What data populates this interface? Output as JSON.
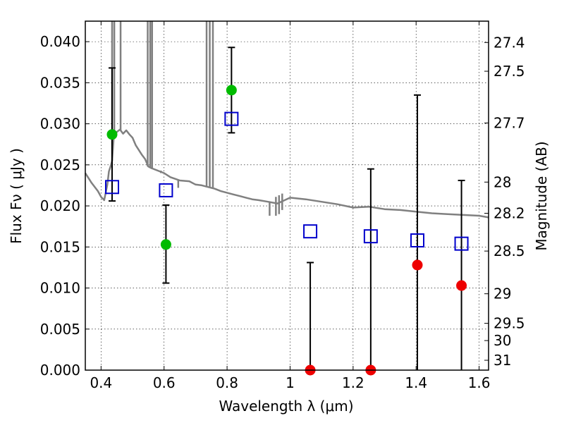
{
  "chart_data": {
    "type": "scatter",
    "xlabel": "Wavelength  λ (μm)",
    "ylabel": "Flux  Fν  ( μJy )",
    "ylabel_right": "Magnitude (AB)",
    "xlim": [
      0.35,
      1.63
    ],
    "ylim": [
      0.0,
      0.0425
    ],
    "grid": true,
    "x_ticks": [
      0.4,
      0.6,
      0.8,
      1.0,
      1.2,
      1.4,
      1.6
    ],
    "x_tick_labels": [
      "0.4",
      "0.6",
      "0.8",
      "1",
      "1.2",
      "1.4",
      "1.6"
    ],
    "y_ticks": [
      0.0,
      0.005,
      0.01,
      0.015,
      0.02,
      0.025,
      0.03,
      0.035,
      0.04
    ],
    "y_tick_labels": [
      "0.000",
      "0.005",
      "0.010",
      "0.015",
      "0.020",
      "0.025",
      "0.030",
      "0.035",
      "0.040"
    ],
    "right_ticks": [
      {
        "label": "27.4",
        "flux": 0.0399
      },
      {
        "label": "27.5",
        "flux": 0.0364
      },
      {
        "label": "27.7",
        "flux": 0.0301
      },
      {
        "label": "28",
        "flux": 0.0229
      },
      {
        "label": "28.2",
        "flux": 0.0191
      },
      {
        "label": "28.5",
        "flux": 0.0145
      },
      {
        "label": "29",
        "flux": 0.0093
      },
      {
        "label": "29.5",
        "flux": 0.0057
      },
      {
        "label": "30",
        "flux": 0.0036
      },
      {
        "label": "31",
        "flux": 0.0012
      }
    ],
    "observed": [
      {
        "x": 0.435,
        "y": 0.0287,
        "err_low": 0.0206,
        "err_high": 0.0368,
        "color": "#00bb00"
      },
      {
        "x": 0.606,
        "y": 0.0153,
        "err_low": 0.0106,
        "err_high": 0.0201,
        "color": "#00bb00"
      },
      {
        "x": 0.814,
        "y": 0.0341,
        "err_low": 0.0289,
        "err_high": 0.0393,
        "color": "#00bb00"
      },
      {
        "x": 1.064,
        "y": 0.0,
        "err_low": 0.0,
        "err_high": 0.0131,
        "color": "#ee0000"
      },
      {
        "x": 1.256,
        "y": 0.0,
        "err_low": 0.0,
        "err_high": 0.0245,
        "color": "#ee0000"
      },
      {
        "x": 1.404,
        "y": 0.0128,
        "err_low": 0.0,
        "err_high": 0.0335,
        "color": "#ee0000"
      },
      {
        "x": 1.544,
        "y": 0.0103,
        "err_low": 0.0,
        "err_high": 0.0231,
        "color": "#ee0000"
      }
    ],
    "model_points": {
      "x": [
        0.435,
        0.606,
        0.814,
        1.064,
        1.256,
        1.404,
        1.544
      ],
      "y": [
        0.0223,
        0.0219,
        0.0306,
        0.0169,
        0.0163,
        0.0158,
        0.0154
      ],
      "color": "#0000cc"
    },
    "model_sed": {
      "color": "#808080",
      "x": [
        0.35,
        0.37,
        0.39,
        0.4,
        0.41,
        0.42,
        0.425,
        0.43,
        0.435,
        0.44,
        0.45,
        0.46,
        0.47,
        0.48,
        0.49,
        0.5,
        0.51,
        0.52,
        0.53,
        0.54,
        0.55,
        0.56,
        0.58,
        0.6,
        0.62,
        0.65,
        0.68,
        0.7,
        0.72,
        0.74,
        0.76,
        0.78,
        0.8,
        0.82,
        0.84,
        0.86,
        0.88,
        0.9,
        0.93,
        0.96,
        1.0,
        1.05,
        1.1,
        1.15,
        1.2,
        1.25,
        1.3,
        1.35,
        1.4,
        1.45,
        1.5,
        1.55,
        1.6,
        1.63
      ],
      "y": [
        0.024,
        0.0228,
        0.0218,
        0.0211,
        0.0207,
        0.0226,
        0.0242,
        0.0248,
        0.0255,
        0.0282,
        0.029,
        0.0293,
        0.0288,
        0.0292,
        0.0287,
        0.0283,
        0.0274,
        0.0268,
        0.0262,
        0.0257,
        0.0248,
        0.0246,
        0.0243,
        0.024,
        0.0235,
        0.0231,
        0.023,
        0.0226,
        0.0225,
        0.0223,
        0.0221,
        0.0218,
        0.0216,
        0.0214,
        0.0212,
        0.021,
        0.0208,
        0.0207,
        0.0205,
        0.0203,
        0.021,
        0.0208,
        0.0205,
        0.0202,
        0.0198,
        0.0199,
        0.0196,
        0.0195,
        0.0193,
        0.0191,
        0.019,
        0.0189,
        0.0188,
        0.0186
      ]
    },
    "emission_lines": [
      {
        "x": 0.435,
        "top": 0.0425,
        "base": 0.0255
      },
      {
        "x": 0.442,
        "top": 0.0425,
        "base": 0.0283
      },
      {
        "x": 0.462,
        "top": 0.0425,
        "base": 0.0292
      },
      {
        "x": 0.548,
        "top": 0.0425,
        "base": 0.0248
      },
      {
        "x": 0.556,
        "top": 0.0425,
        "base": 0.0246
      },
      {
        "x": 0.562,
        "top": 0.0425,
        "base": 0.0245
      },
      {
        "x": 0.735,
        "top": 0.0425,
        "base": 0.0224
      },
      {
        "x": 0.745,
        "top": 0.0425,
        "base": 0.0223
      },
      {
        "x": 0.755,
        "top": 0.0425,
        "base": 0.0222
      }
    ],
    "absorption_lines": [
      {
        "x": 0.59,
        "top": 0.0243,
        "bottom": 0.024
      },
      {
        "x": 0.645,
        "top": 0.0231,
        "bottom": 0.0222
      },
      {
        "x": 0.935,
        "top": 0.0205,
        "bottom": 0.0188
      },
      {
        "x": 0.955,
        "top": 0.0211,
        "bottom": 0.0188
      },
      {
        "x": 0.965,
        "top": 0.0213,
        "bottom": 0.019
      },
      {
        "x": 0.975,
        "top": 0.0215,
        "bottom": 0.0195
      }
    ]
  }
}
